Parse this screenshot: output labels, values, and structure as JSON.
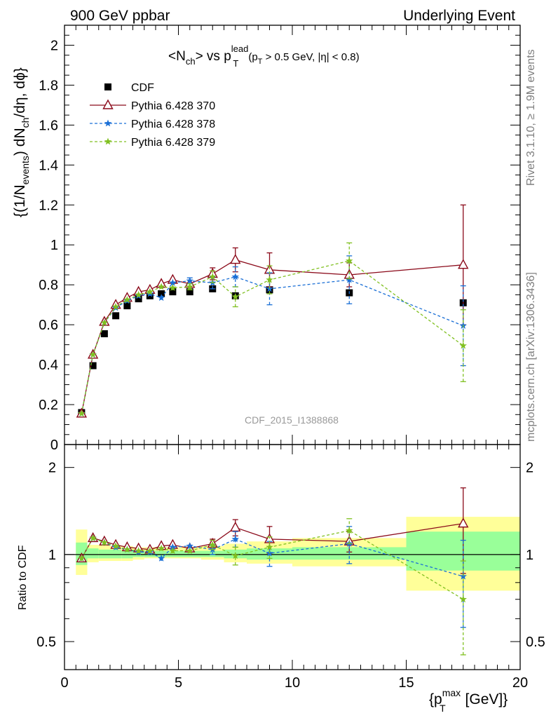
{
  "header": {
    "left": "900 GeV ppbar",
    "right": "Underlying Event"
  },
  "side_label_top": "Rivet 3.1.10, ≥ 1.9M events",
  "side_label_bottom": "mcplots.cern.ch [arXiv:1306.3436]",
  "title": {
    "main": "<N",
    "sub1": "ch",
    "mid": "> vs p",
    "sup": "lead",
    "sub2": "T",
    "cond_a": "(p",
    "cond_sub": "T",
    "cond_b": " > 0.5 GeV, |η| < 0.8)"
  },
  "watermark": "CDF_2015_I1388868",
  "ylabel_top": {
    "a": "{(1/N",
    "sub1": "events",
    "b": ") dN",
    "sub2": "ch",
    "c": "/dη, dϕ}"
  },
  "ylabel_bottom": "Ratio to CDF",
  "xlabel": {
    "a": "{p",
    "sup": "max",
    "sub": "T",
    "b": " [GeV]}"
  },
  "legend": [
    {
      "label": "CDF",
      "color": "#000000",
      "marker": "square",
      "line": "none"
    },
    {
      "label": "Pythia 6.428 370",
      "color": "#8b0a1a",
      "marker": "triangle-open",
      "line": "solid"
    },
    {
      "label": "Pythia 6.428 378",
      "color": "#1a6fd6",
      "marker": "star",
      "line": "dashed"
    },
    {
      "label": "Pythia 6.428 379",
      "color": "#80c020",
      "marker": "star",
      "line": "dashed"
    }
  ],
  "chart_data": {
    "type": "scatter",
    "x": [
      0.75,
      1.25,
      1.75,
      2.25,
      2.75,
      3.25,
      3.75,
      4.25,
      4.75,
      5.5,
      6.5,
      7.5,
      9.0,
      12.5,
      17.5
    ],
    "xlim": [
      0,
      20
    ],
    "xticks": [
      0,
      5,
      10,
      15,
      20
    ],
    "top": {
      "ylim": [
        0,
        2.1
      ],
      "yticks": [
        "0",
        "0.2",
        "0.4",
        "0.6",
        "0.8",
        "1",
        "1.2",
        "1.4",
        "1.6",
        "1.8",
        "2"
      ],
      "series": [
        {
          "name": "CDF",
          "values": [
            0.16,
            0.395,
            0.555,
            0.645,
            0.695,
            0.73,
            0.745,
            0.755,
            0.765,
            0.765,
            0.78,
            0.745,
            0.775,
            0.76,
            0.71
          ],
          "err": [
            0.01,
            0.01,
            0.01,
            0.01,
            0.01,
            0.01,
            0.01,
            0.01,
            0.01,
            0.01,
            0.01,
            0.01,
            0.01,
            0.01,
            0.01
          ]
        },
        {
          "name": "Pythia 6.428 370",
          "values": [
            0.155,
            0.45,
            0.615,
            0.7,
            0.735,
            0.765,
            0.775,
            0.805,
            0.825,
            0.805,
            0.855,
            0.925,
            0.875,
            0.85,
            0.9
          ],
          "err": [
            0.005,
            0.008,
            0.008,
            0.008,
            0.008,
            0.008,
            0.01,
            0.01,
            0.012,
            0.012,
            0.03,
            0.06,
            0.085,
            0.06,
            0.3
          ]
        },
        {
          "name": "Pythia 6.428 378",
          "values": [
            0.155,
            0.45,
            0.61,
            0.685,
            0.72,
            0.745,
            0.755,
            0.735,
            0.81,
            0.82,
            0.81,
            0.84,
            0.78,
            0.825,
            0.595
          ],
          "err": [
            0.005,
            0.008,
            0.008,
            0.008,
            0.008,
            0.008,
            0.01,
            0.01,
            0.012,
            0.015,
            0.03,
            0.05,
            0.08,
            0.12,
            0.2
          ]
        },
        {
          "name": "Pythia 6.428 379",
          "values": [
            0.155,
            0.45,
            0.61,
            0.69,
            0.725,
            0.75,
            0.765,
            0.79,
            0.785,
            0.79,
            0.84,
            0.74,
            0.825,
            0.92,
            0.495
          ],
          "err": [
            0.005,
            0.008,
            0.008,
            0.008,
            0.008,
            0.008,
            0.01,
            0.01,
            0.012,
            0.015,
            0.03,
            0.05,
            0.07,
            0.09,
            0.18
          ]
        }
      ]
    },
    "ratio": {
      "ylim_log": [
        0.4,
        2.4
      ],
      "yticks": [
        "0.5",
        "1",
        "2"
      ],
      "band_edges": [
        0.5,
        1.0,
        1.5,
        2.0,
        2.5,
        3.0,
        3.5,
        4.0,
        4.5,
        5.0,
        6.0,
        7.0,
        8.0,
        10.0,
        15.0,
        20.0
      ],
      "band_inner": [
        [
          0.92,
          1.1
        ],
        [
          0.97,
          1.05
        ],
        [
          0.97,
          1.04
        ],
        [
          0.97,
          1.04
        ],
        [
          0.97,
          1.03
        ],
        [
          0.98,
          1.03
        ],
        [
          0.98,
          1.03
        ],
        [
          0.98,
          1.03
        ],
        [
          0.98,
          1.03
        ],
        [
          0.98,
          1.03
        ],
        [
          0.98,
          1.03
        ],
        [
          0.97,
          1.04
        ],
        [
          0.96,
          1.05
        ],
        [
          0.96,
          1.06
        ],
        [
          0.88,
          1.2
        ]
      ],
      "band_outer": [
        [
          0.85,
          1.22
        ],
        [
          0.94,
          1.08
        ],
        [
          0.95,
          1.08
        ],
        [
          0.95,
          1.07
        ],
        [
          0.95,
          1.07
        ],
        [
          0.96,
          1.06
        ],
        [
          0.97,
          1.06
        ],
        [
          0.97,
          1.06
        ],
        [
          0.97,
          1.06
        ],
        [
          0.97,
          1.06
        ],
        [
          0.96,
          1.07
        ],
        [
          0.94,
          1.09
        ],
        [
          0.93,
          1.11
        ],
        [
          0.91,
          1.14
        ],
        [
          0.75,
          1.35
        ]
      ],
      "series": [
        {
          "name": "Pythia 6.428 370",
          "values": [
            0.97,
            1.14,
            1.11,
            1.08,
            1.06,
            1.05,
            1.04,
            1.07,
            1.08,
            1.05,
            1.09,
            1.24,
            1.13,
            1.11,
            1.28
          ],
          "err": [
            0.02,
            0.02,
            0.02,
            0.02,
            0.02,
            0.02,
            0.02,
            0.02,
            0.02,
            0.02,
            0.04,
            0.08,
            0.12,
            0.09,
            0.42
          ]
        },
        {
          "name": "Pythia 6.428 378",
          "values": [
            0.97,
            1.14,
            1.1,
            1.06,
            1.04,
            1.02,
            1.02,
            0.97,
            1.06,
            1.07,
            1.04,
            1.13,
            1.01,
            1.09,
            0.84
          ],
          "err": [
            0.02,
            0.02,
            0.02,
            0.02,
            0.02,
            0.02,
            0.02,
            0.02,
            0.02,
            0.02,
            0.04,
            0.07,
            0.1,
            0.16,
            0.28
          ]
        },
        {
          "name": "Pythia 6.428 379",
          "values": [
            0.97,
            1.14,
            1.1,
            1.07,
            1.04,
            1.03,
            1.03,
            1.05,
            1.03,
            1.03,
            1.08,
            0.99,
            1.06,
            1.21,
            0.7
          ],
          "err": [
            0.02,
            0.02,
            0.02,
            0.02,
            0.02,
            0.02,
            0.02,
            0.02,
            0.02,
            0.02,
            0.04,
            0.07,
            0.09,
            0.12,
            0.25
          ]
        }
      ]
    }
  }
}
